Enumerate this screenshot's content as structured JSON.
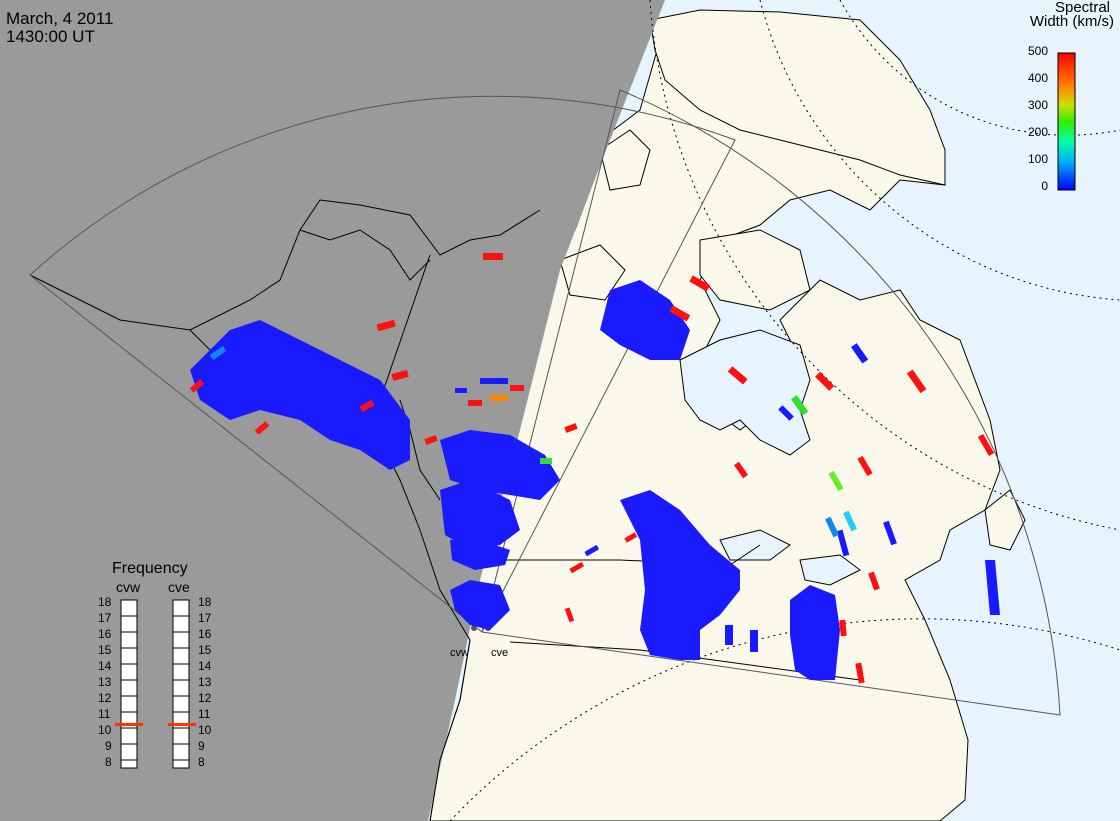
{
  "header": {
    "date": "March, 4 2011",
    "time": "1430:00 UT"
  },
  "colorbar": {
    "title_line1": "Spectral",
    "title_line2": "Width (km/s)",
    "ticks": [
      "500",
      "400",
      "300",
      "200",
      "100",
      "0"
    ],
    "colors": [
      "#ff0000",
      "#ff8800",
      "#ffff00",
      "#00ff00",
      "#00ffff",
      "#0000ff"
    ]
  },
  "frequency": {
    "title": "Frequency",
    "radars": [
      "cvw",
      "cve"
    ],
    "ticks": [
      "18",
      "17",
      "16",
      "15",
      "14",
      "13",
      "12",
      "11",
      "10",
      "9",
      "8"
    ],
    "values_mhz": [
      10.8,
      10.8
    ]
  },
  "radar_sites": {
    "west": "cvw",
    "east": "cve"
  },
  "colors": {
    "night_shade": "#999999",
    "land": "#faf8ea",
    "ocean": "#e8f4fd",
    "scatter_low": "#1a1aff",
    "scatter_high": "#ff1010"
  }
}
